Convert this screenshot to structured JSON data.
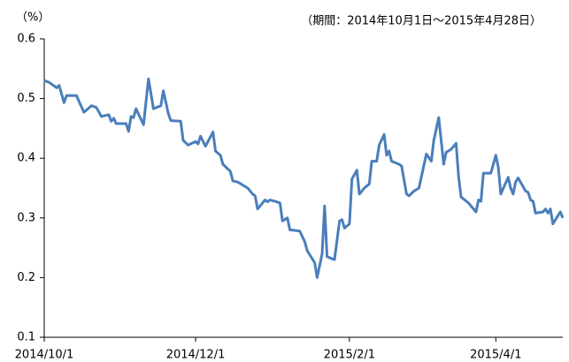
{
  "chart_data": {
    "type": "line",
    "subtitle": "（期間：2014年10月1日～2015年4月28日）",
    "ylabel": "（%）",
    "color": "#4a7ebb",
    "x": [
      "2014/10/1",
      "2014/10/3",
      "2014/10/6",
      "2014/10/7",
      "2014/10/9",
      "2014/10/10",
      "2014/10/14",
      "2014/10/15",
      "2014/10/17",
      "2014/10/20",
      "2014/10/22",
      "2014/10/24",
      "2014/10/27",
      "2014/10/28",
      "2014/10/29",
      "2014/10/30",
      "2014/11/3",
      "2014/11/4",
      "2014/11/5",
      "2014/11/6",
      "2014/11/7",
      "2014/11/10",
      "2014/11/12",
      "2014/11/14",
      "2014/11/17",
      "2014/11/18",
      "2014/11/20",
      "2014/11/21",
      "2014/11/25",
      "2014/11/26",
      "2014/11/28",
      "2014/12/1",
      "2014/12/2",
      "2014/12/3",
      "2014/12/5",
      "2014/12/8",
      "2014/12/9",
      "2014/12/11",
      "2014/12/12",
      "2014/12/15",
      "2014/12/16",
      "2014/12/18",
      "2014/12/22",
      "2014/12/24",
      "2014/12/25",
      "2014/12/26",
      "2014/12/29",
      "2014/12/30",
      "2014/12/31",
      "2015/1/2",
      "2015/1/4",
      "2015/1/5",
      "2015/1/7",
      "2015/1/8",
      "2015/1/12",
      "2015/1/14",
      "2015/1/15",
      "2015/1/18",
      "2015/1/19",
      "2015/1/21",
      "2015/1/22",
      "2015/1/23",
      "2015/1/26",
      "2015/1/28",
      "2015/1/29",
      "2015/1/30",
      "2015/2/1",
      "2015/2/2",
      "2015/2/4",
      "2015/2/5",
      "2015/2/7",
      "2015/2/9",
      "2015/2/10",
      "2015/2/12",
      "2015/2/13",
      "2015/2/15",
      "2015/2/16",
      "2015/2/17",
      "2015/2/18",
      "2015/2/21",
      "2015/2/22",
      "2015/2/24",
      "2015/2/25",
      "2015/2/27",
      "2015/3/1",
      "2015/3/4",
      "2015/3/6",
      "2015/3/7",
      "2015/3/9",
      "2015/3/11",
      "2015/3/12",
      "2015/3/14",
      "2015/3/16",
      "2015/3/17",
      "2015/3/18",
      "2015/3/21",
      "2015/3/23",
      "2015/3/24",
      "2015/3/25",
      "2015/3/26",
      "2015/3/27",
      "2015/3/30",
      "2015/4/1",
      "2015/4/2",
      "2015/4/3",
      "2015/4/6",
      "2015/4/7",
      "2015/4/8",
      "2015/4/9",
      "2015/4/10",
      "2015/4/13",
      "2015/4/14",
      "2015/4/15",
      "2015/4/16",
      "2015/4/17",
      "2015/4/20",
      "2015/4/21",
      "2015/4/22",
      "2015/4/23",
      "2015/4/24",
      "2015/4/27",
      "2015/4/28"
    ],
    "values": [
      0.53,
      0.527,
      0.518,
      0.522,
      0.493,
      0.505,
      0.505,
      0.495,
      0.477,
      0.488,
      0.485,
      0.47,
      0.473,
      0.462,
      0.467,
      0.458,
      0.458,
      0.445,
      0.47,
      0.468,
      0.483,
      0.456,
      0.533,
      0.483,
      0.488,
      0.513,
      0.475,
      0.463,
      0.462,
      0.43,
      0.422,
      0.428,
      0.424,
      0.437,
      0.42,
      0.444,
      0.412,
      0.405,
      0.39,
      0.378,
      0.362,
      0.36,
      0.35,
      0.34,
      0.337,
      0.315,
      0.33,
      0.327,
      0.33,
      0.328,
      0.325,
      0.295,
      0.3,
      0.28,
      0.278,
      0.26,
      0.245,
      0.225,
      0.2,
      0.24,
      0.32,
      0.235,
      0.23,
      0.295,
      0.297,
      0.283,
      0.29,
      0.365,
      0.38,
      0.34,
      0.35,
      0.357,
      0.395,
      0.395,
      0.422,
      0.44,
      0.405,
      0.412,
      0.395,
      0.39,
      0.387,
      0.34,
      0.337,
      0.345,
      0.35,
      0.407,
      0.395,
      0.43,
      0.468,
      0.39,
      0.41,
      0.415,
      0.425,
      0.37,
      0.335,
      0.325,
      0.315,
      0.31,
      0.33,
      0.328,
      0.375,
      0.375,
      0.405,
      0.385,
      0.34,
      0.368,
      0.35,
      0.34,
      0.36,
      0.367,
      0.345,
      0.343,
      0.33,
      0.328,
      0.308,
      0.31,
      0.315,
      0.308,
      0.315,
      0.29,
      0.31,
      0.3
    ],
    "xlim": [
      "2014/10/1",
      "2015/4/28"
    ],
    "xticks": [
      "2014/10/1",
      "2014/12/1",
      "2015/2/1",
      "2015/4/1"
    ],
    "ylim": [
      0.1,
      0.6
    ],
    "yticks": [
      0.1,
      0.2,
      0.3,
      0.4,
      0.5,
      0.6
    ],
    "grid": false
  }
}
